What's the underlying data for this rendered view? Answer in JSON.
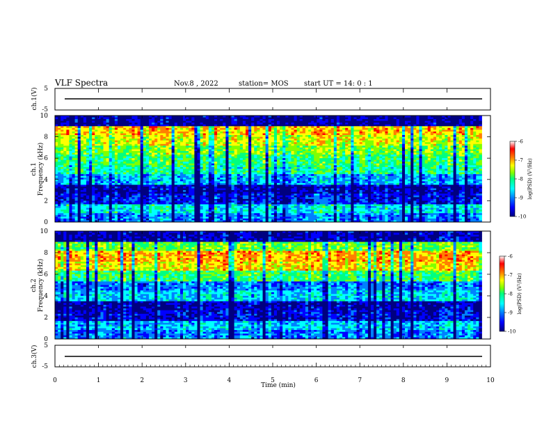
{
  "header": {
    "title": "VLF Spectra",
    "date": "Nov.8  , 2022",
    "station": "station= MOS",
    "start_time": "start  UT  =   14: 0  : 1"
  },
  "colorbar_label": "log(PSD) (V²/Hz)",
  "colorbar_ticks": [
    "-6",
    "-7",
    "-8",
    "-9",
    "-10"
  ],
  "colorbar_colors": [
    "#000080",
    "#0000ff",
    "#0080ff",
    "#00ffff",
    "#00ff80",
    "#80ff00",
    "#ffff00",
    "#ff8000",
    "#ff0000",
    "#ffffff"
  ],
  "x_axis": {
    "label": "Time  (min)",
    "ticks": [
      "0",
      "1",
      "2",
      "3",
      "4",
      "5",
      "6",
      "7",
      "8",
      "9",
      "10"
    ]
  },
  "chart_data": [
    {
      "type": "line",
      "ylabel": "ch.1(V)",
      "xlim": [
        0,
        10
      ],
      "ylim": [
        -5,
        5
      ],
      "y_ticks": [
        "5",
        "-5"
      ],
      "series": [
        {
          "x": [
            0,
            2,
            4,
            6,
            8,
            9.8
          ],
          "values": [
            0,
            0,
            0,
            0,
            0,
            0
          ]
        }
      ]
    },
    {
      "type": "heatmap",
      "ylabel": "ch.1\nFrequency  (kHz)",
      "xlim": [
        0,
        9.8
      ],
      "ylim": [
        0,
        10
      ],
      "y_ticks": [
        "0",
        "2",
        "4",
        "6",
        "8",
        "10"
      ],
      "color_range": [
        -10,
        -6
      ],
      "freq_bands_khz": [
        9.6,
        8.5,
        7.0,
        5.5,
        4.0,
        2.8,
        2.0,
        1.5,
        1.0,
        0.6,
        0.2
      ],
      "band_log_psd": [
        -9.7,
        -6.9,
        -7.2,
        -7.6,
        -7.9,
        -8.1,
        -8.7,
        -9.6,
        -9.3,
        -8.4,
        -8.9
      ]
    },
    {
      "type": "heatmap",
      "ylabel": "ch.2\nFrequency  (kHz)",
      "xlim": [
        0,
        9.8
      ],
      "ylim": [
        0,
        10
      ],
      "y_ticks": [
        "0",
        "2",
        "4",
        "6",
        "8",
        "10"
      ],
      "color_range": [
        -10,
        -6
      ],
      "freq_bands_khz": [
        9.6,
        8.5,
        7.0,
        5.5,
        4.0,
        2.8,
        2.0,
        1.5,
        1.0,
        0.6,
        0.2
      ],
      "band_log_psd": [
        -9.6,
        -7.6,
        -6.8,
        -7.0,
        -7.9,
        -8.9,
        -8.5,
        -9.6,
        -9.4,
        -8.6,
        -8.9
      ]
    },
    {
      "type": "line",
      "ylabel": "ch.3(V)",
      "xlim": [
        0,
        10
      ],
      "ylim": [
        -5,
        5
      ],
      "y_ticks": [
        "5",
        "-5"
      ],
      "series": [
        {
          "x": [
            0,
            2,
            4,
            6,
            8,
            9.8
          ],
          "values": [
            0,
            0,
            0,
            0,
            0,
            0
          ]
        }
      ]
    }
  ]
}
